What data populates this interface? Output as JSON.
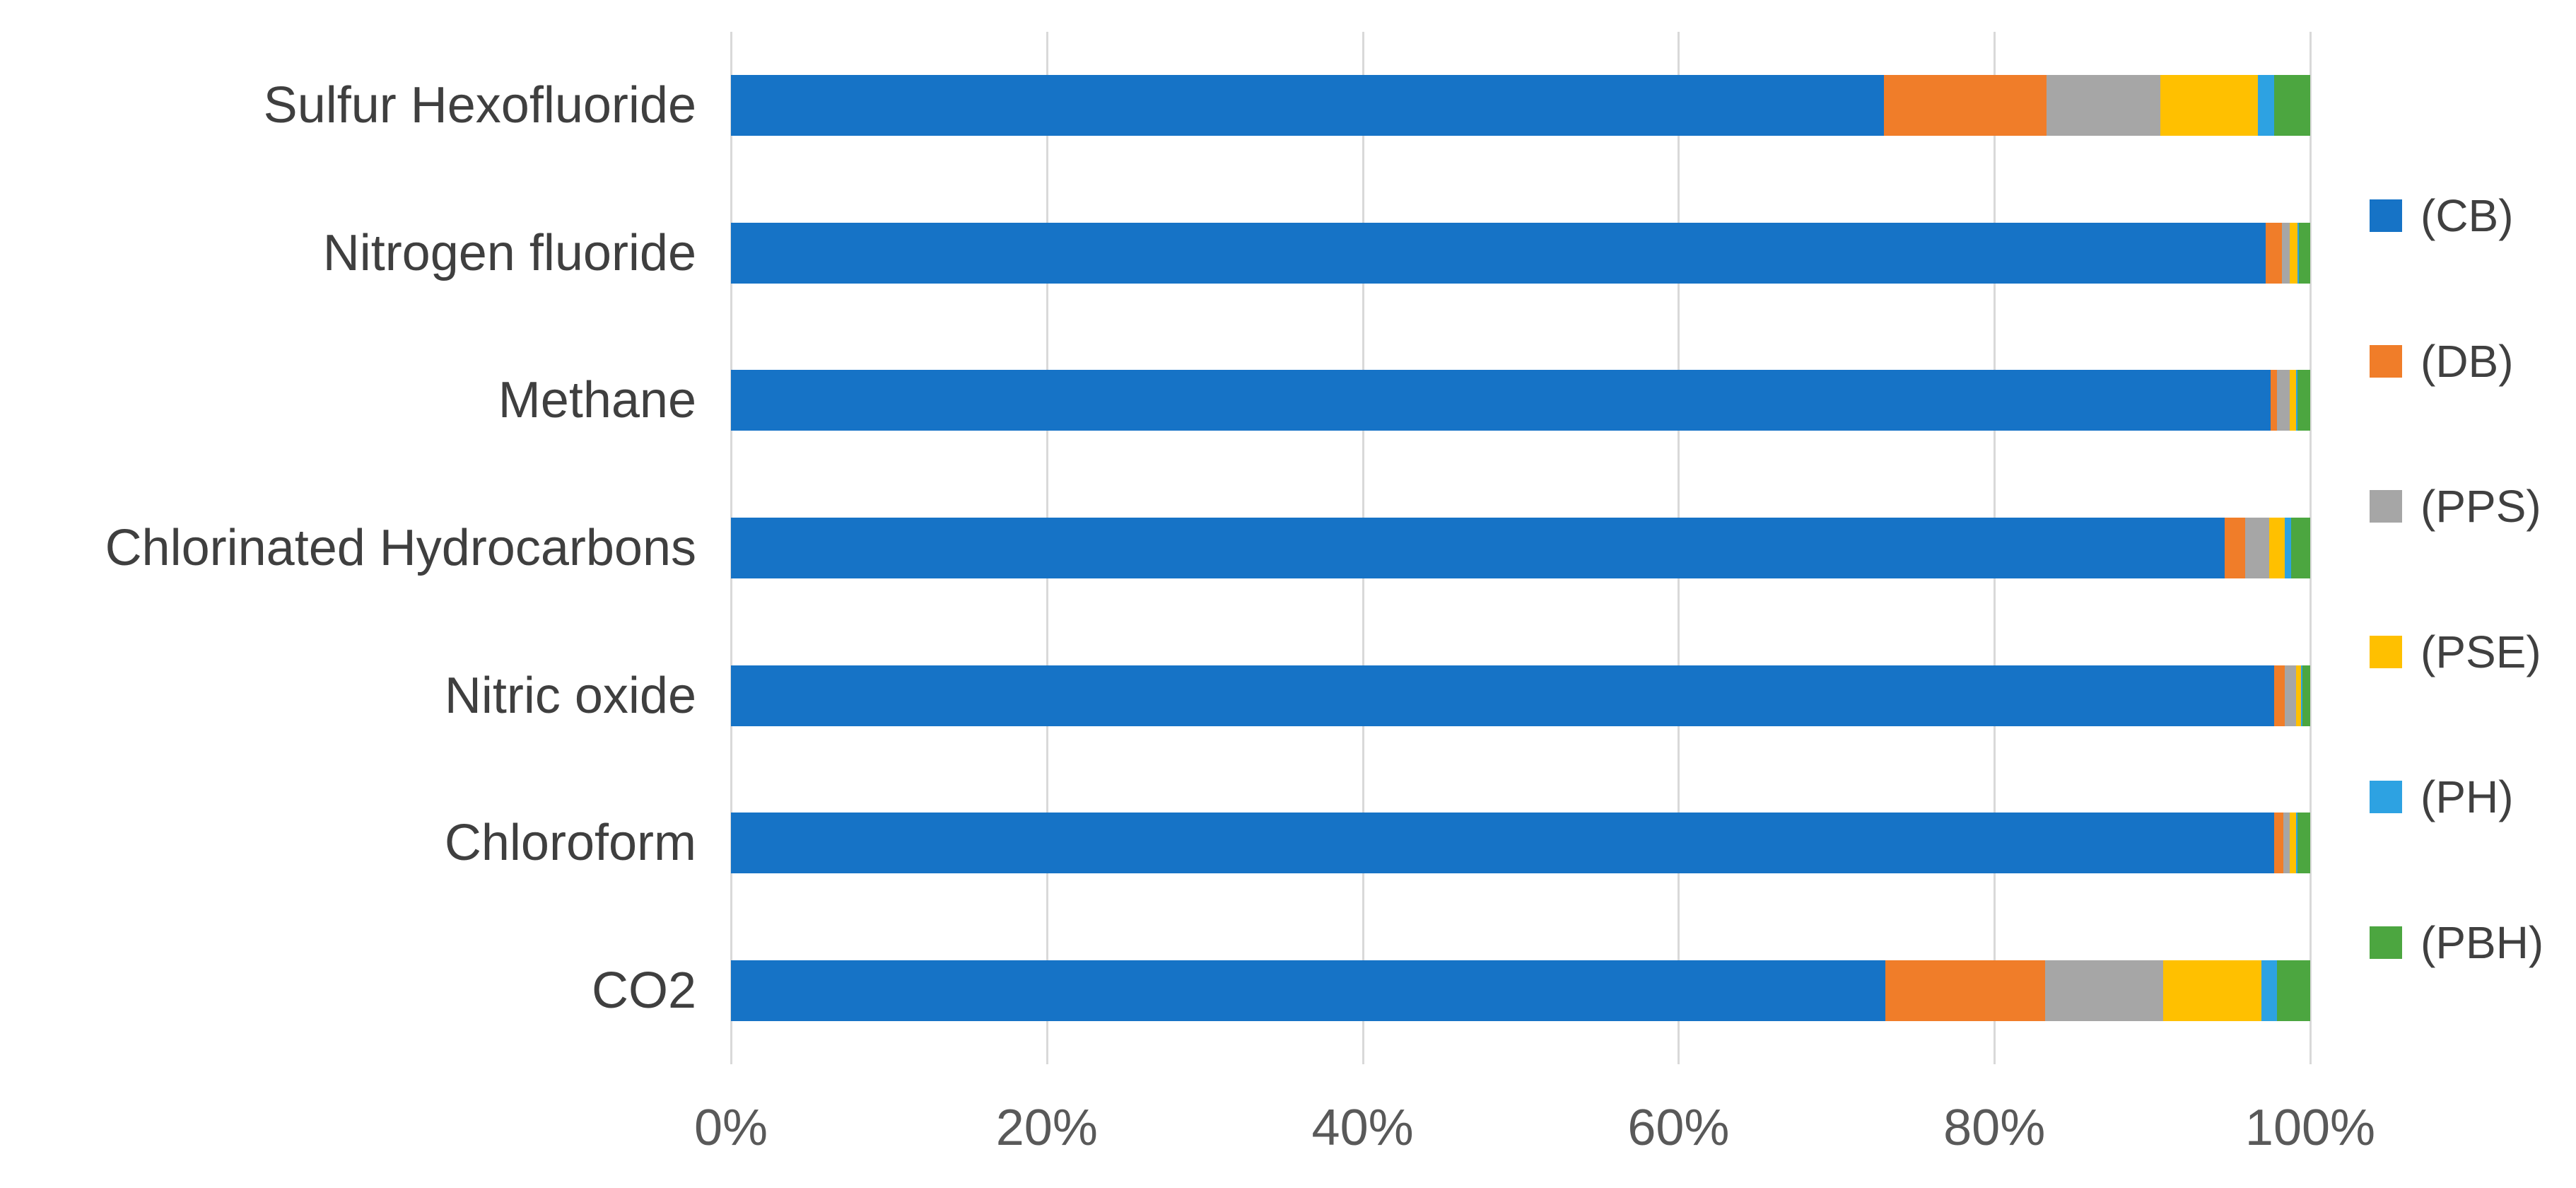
{
  "chart_data": {
    "type": "bar",
    "orientation": "horizontal",
    "stacked": true,
    "title": "",
    "xlabel": "",
    "ylabel": "",
    "xlim": [
      0,
      100
    ],
    "x_tick_labels": [
      "0%",
      "20%",
      "40%",
      "60%",
      "80%",
      "100%"
    ],
    "grid": "vertical",
    "legend_position": "right",
    "categories": [
      "Sulfur Hexofluoride",
      "Nitrogen fluoride",
      "Methane",
      "Chlorinated Hydrocarbons",
      "Nitric oxide",
      "Chloroform",
      "CO2"
    ],
    "series": [
      {
        "name": "(CB)",
        "color": "#1673C6",
        "values": [
          73.0,
          97.2,
          97.5,
          94.6,
          97.7,
          97.7,
          73.1
        ]
      },
      {
        "name": "(DB)",
        "color": "#F07D29",
        "values": [
          10.3,
          1.0,
          0.4,
          1.3,
          0.7,
          0.6,
          10.1
        ]
      },
      {
        "name": "(PPS)",
        "color": "#A6A6A6",
        "values": [
          7.2,
          0.5,
          0.8,
          1.5,
          0.7,
          0.4,
          7.5
        ]
      },
      {
        "name": "(PSE)",
        "color": "#FFC000",
        "values": [
          6.2,
          0.5,
          0.4,
          1.0,
          0.3,
          0.4,
          6.2
        ]
      },
      {
        "name": "(PH)",
        "color": "#2DA2E2",
        "values": [
          1.0,
          0.1,
          0.1,
          0.4,
          0.1,
          0.1,
          1.0
        ]
      },
      {
        "name": "(PBH)",
        "color": "#4CA640",
        "values": [
          2.3,
          0.7,
          0.8,
          1.2,
          0.5,
          0.8,
          2.1
        ]
      }
    ],
    "gridline_color": "#D9D9D9",
    "tick_label_color": "#595959",
    "category_label_color": "#3F3F3F"
  }
}
